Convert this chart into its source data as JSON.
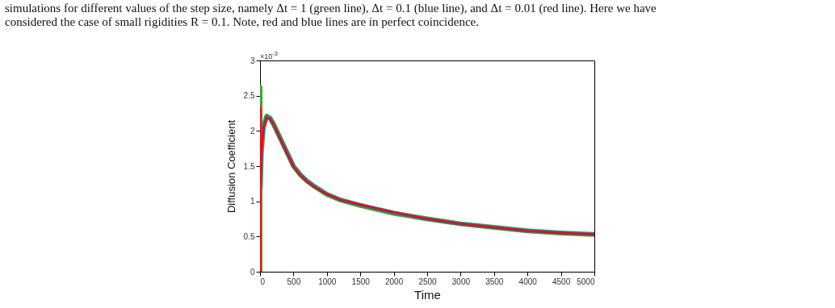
{
  "chart_data": {
    "type": "line",
    "xlabel": "Time",
    "ylabel": "Diffusion Coefficient",
    "annotations": [
      "simulations for different values of the step size, namely Δt = 1 (green line), Δt = 0.1 (blue line), and Δt = 0.01 (red line). Here we have",
      "considered the case of small rigidities R = 0.1. Note, red and blue lines are in perfect coincidence.",
      "×10$^{-3}$"
    ],
    "x": [
      0,
      0,
      5,
      20,
      50,
      100,
      150,
      200,
      300,
      400,
      500,
      600,
      700,
      800,
      1000,
      1200,
      1500,
      2000,
      2500,
      3000,
      3500,
      4000,
      4500,
      5000
    ],
    "series": [
      {
        "color": "#3aa935",
        "values": [
          0,
          2.62,
          1.2,
          1.7,
          2.05,
          2.21,
          2.18,
          2.1,
          1.9,
          1.7,
          1.5,
          1.38,
          1.29,
          1.22,
          1.1,
          1.02,
          0.94,
          0.83,
          0.75,
          0.68,
          0.63,
          0.58,
          0.55,
          0.53
        ]
      },
      {
        "color": "#1f77c4",
        "values": [
          0,
          2.3,
          1.2,
          1.7,
          2.05,
          2.2,
          2.18,
          2.1,
          1.9,
          1.7,
          1.5,
          1.38,
          1.29,
          1.22,
          1.1,
          1.02,
          0.95,
          0.84,
          0.75,
          0.68,
          0.63,
          0.58,
          0.55,
          0.53
        ]
      },
      {
        "color": "#ff0000",
        "values": [
          0,
          2.35,
          1.2,
          1.7,
          2.04,
          2.19,
          2.17,
          2.09,
          1.89,
          1.69,
          1.49,
          1.37,
          1.28,
          1.21,
          1.1,
          1.02,
          0.95,
          0.84,
          0.75,
          0.68,
          0.63,
          0.58,
          0.55,
          0.53
        ]
      }
    ],
    "xlim": [
      0,
      5000
    ],
    "xticks": [
      0,
      500,
      1000,
      1500,
      2000,
      2500,
      3000,
      3500,
      4000,
      4500,
      5000
    ],
    "ylim": [
      0,
      3
    ],
    "yticks": [
      0,
      0.5,
      1,
      1.5,
      2,
      2.5,
      3
    ],
    "grid": false,
    "legend": false,
    "marker": "none",
    "line_style": "solid"
  }
}
